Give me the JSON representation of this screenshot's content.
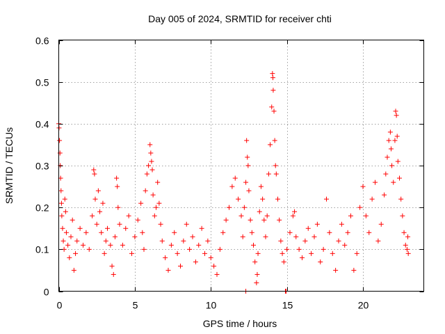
{
  "chart_data": {
    "type": "scatter",
    "title": "Day 005 of 2024, SRMTID for receiver chti",
    "xlabel": "GPS time / hours",
    "ylabel": "SRMTID / TECUs",
    "xlim": [
      0,
      24
    ],
    "ylim": [
      0,
      0.6
    ],
    "xticks": [
      0,
      5,
      10,
      15,
      20
    ],
    "xtick_labels": [
      "0",
      "5",
      "10",
      "15",
      "20"
    ],
    "yticks": [
      0,
      0.1,
      0.2,
      0.3,
      0.4,
      0.5,
      0.6
    ],
    "ytick_labels": [
      "0",
      "0.1",
      "0.2",
      "0.3",
      "0.4",
      "0.5",
      "0.6"
    ],
    "grid": true,
    "marker": "plus",
    "color": "#ff0000",
    "series": [
      {
        "name": "SRMTID",
        "points": [
          [
            0.0,
            0.4
          ],
          [
            0.02,
            0.39
          ],
          [
            0.05,
            0.36
          ],
          [
            0.08,
            0.33
          ],
          [
            0.1,
            0.3
          ],
          [
            0.12,
            0.27
          ],
          [
            0.15,
            0.24
          ],
          [
            0.18,
            0.21
          ],
          [
            0.2,
            0.18
          ],
          [
            0.25,
            0.15
          ],
          [
            0.3,
            0.12
          ],
          [
            0.35,
            0.1
          ],
          [
            0.4,
            0.22
          ],
          [
            0.45,
            0.19
          ],
          [
            0.5,
            0.14
          ],
          [
            0.6,
            0.11
          ],
          [
            0.7,
            0.08
          ],
          [
            0.8,
            0.13
          ],
          [
            0.9,
            0.17
          ],
          [
            1.0,
            0.05
          ],
          [
            1.1,
            0.09
          ],
          [
            1.2,
            0.12
          ],
          [
            1.4,
            0.15
          ],
          [
            1.6,
            0.11
          ],
          [
            1.8,
            0.14
          ],
          [
            2.0,
            0.1
          ],
          [
            2.2,
            0.18
          ],
          [
            2.3,
            0.29
          ],
          [
            2.35,
            0.28
          ],
          [
            2.4,
            0.22
          ],
          [
            2.5,
            0.16
          ],
          [
            2.6,
            0.24
          ],
          [
            2.7,
            0.19
          ],
          [
            2.8,
            0.14
          ],
          [
            2.9,
            0.21
          ],
          [
            3.0,
            0.09
          ],
          [
            3.1,
            0.12
          ],
          [
            3.2,
            0.15
          ],
          [
            3.4,
            0.11
          ],
          [
            3.5,
            0.06
          ],
          [
            3.6,
            0.04
          ],
          [
            3.7,
            0.13
          ],
          [
            3.8,
            0.27
          ],
          [
            3.85,
            0.25
          ],
          [
            3.9,
            0.2
          ],
          [
            4.0,
            0.16
          ],
          [
            4.2,
            0.11
          ],
          [
            4.4,
            0.15
          ],
          [
            4.6,
            0.18
          ],
          [
            4.8,
            0.09
          ],
          [
            5.0,
            0.13
          ],
          [
            5.2,
            0.17
          ],
          [
            5.4,
            0.21
          ],
          [
            5.5,
            0.14
          ],
          [
            5.6,
            0.1
          ],
          [
            5.7,
            0.24
          ],
          [
            5.8,
            0.28
          ],
          [
            5.9,
            0.3
          ],
          [
            6.0,
            0.35
          ],
          [
            6.05,
            0.33
          ],
          [
            6.1,
            0.31
          ],
          [
            6.15,
            0.29
          ],
          [
            6.2,
            0.23
          ],
          [
            6.3,
            0.18
          ],
          [
            6.4,
            0.2
          ],
          [
            6.5,
            0.26
          ],
          [
            6.6,
            0.21
          ],
          [
            6.7,
            0.16
          ],
          [
            6.8,
            0.12
          ],
          [
            7.0,
            0.08
          ],
          [
            7.2,
            0.05
          ],
          [
            7.4,
            0.11
          ],
          [
            7.6,
            0.14
          ],
          [
            7.8,
            0.09
          ],
          [
            8.0,
            0.06
          ],
          [
            8.2,
            0.12
          ],
          [
            8.4,
            0.16
          ],
          [
            8.6,
            0.1
          ],
          [
            8.8,
            0.13
          ],
          [
            9.0,
            0.07
          ],
          [
            9.2,
            0.11
          ],
          [
            9.4,
            0.15
          ],
          [
            9.6,
            0.09
          ],
          [
            9.8,
            0.12
          ],
          [
            10.0,
            0.08
          ],
          [
            10.2,
            0.06
          ],
          [
            10.4,
            0.04
          ],
          [
            10.6,
            0.1
          ],
          [
            10.8,
            0.14
          ],
          [
            11.0,
            0.17
          ],
          [
            11.2,
            0.2
          ],
          [
            11.4,
            0.25
          ],
          [
            11.6,
            0.27
          ],
          [
            11.8,
            0.22
          ],
          [
            12.0,
            0.18
          ],
          [
            12.1,
            0.13
          ],
          [
            12.2,
            0.2
          ],
          [
            12.3,
            0.26
          ],
          [
            12.35,
            0.36
          ],
          [
            12.4,
            0.32
          ],
          [
            12.45,
            0.3
          ],
          [
            12.5,
            0.24
          ],
          [
            12.6,
            0.17
          ],
          [
            12.7,
            0.14
          ],
          [
            12.8,
            0.11
          ],
          [
            12.9,
            0.07
          ],
          [
            13.0,
            0.02
          ],
          [
            13.05,
            0.04
          ],
          [
            13.1,
            0.09
          ],
          [
            13.2,
            0.19
          ],
          [
            13.3,
            0.25
          ],
          [
            13.4,
            0.22
          ],
          [
            13.5,
            0.17
          ],
          [
            13.6,
            0.13
          ],
          [
            13.7,
            0.18
          ],
          [
            13.8,
            0.28
          ],
          [
            13.9,
            0.35
          ],
          [
            14.0,
            0.44
          ],
          [
            14.05,
            0.52
          ],
          [
            14.08,
            0.51
          ],
          [
            14.1,
            0.48
          ],
          [
            14.15,
            0.43
          ],
          [
            14.2,
            0.36
          ],
          [
            14.25,
            0.3
          ],
          [
            14.3,
            0.28
          ],
          [
            14.4,
            0.22
          ],
          [
            14.5,
            0.17
          ],
          [
            14.6,
            0.12
          ],
          [
            14.7,
            0.09
          ],
          [
            14.8,
            0.07
          ],
          [
            15.0,
            0.1
          ],
          [
            15.2,
            0.14
          ],
          [
            15.4,
            0.18
          ],
          [
            15.5,
            0.19
          ],
          [
            15.6,
            0.13
          ],
          [
            15.8,
            0.1
          ],
          [
            16.0,
            0.08
          ],
          [
            16.2,
            0.12
          ],
          [
            16.4,
            0.15
          ],
          [
            16.6,
            0.09
          ],
          [
            16.8,
            0.13
          ],
          [
            17.0,
            0.16
          ],
          [
            17.2,
            0.07
          ],
          [
            17.4,
            0.1
          ],
          [
            17.6,
            0.22
          ],
          [
            17.8,
            0.14
          ],
          [
            18.0,
            0.09
          ],
          [
            18.2,
            0.05
          ],
          [
            18.4,
            0.12
          ],
          [
            18.6,
            0.16
          ],
          [
            18.8,
            0.11
          ],
          [
            19.0,
            0.14
          ],
          [
            19.2,
            0.18
          ],
          [
            19.4,
            0.05
          ],
          [
            19.6,
            0.09
          ],
          [
            19.8,
            0.2
          ],
          [
            20.0,
            0.25
          ],
          [
            20.2,
            0.18
          ],
          [
            20.4,
            0.14
          ],
          [
            20.6,
            0.22
          ],
          [
            20.8,
            0.26
          ],
          [
            21.0,
            0.12
          ],
          [
            21.2,
            0.16
          ],
          [
            21.4,
            0.23
          ],
          [
            21.5,
            0.28
          ],
          [
            21.6,
            0.32
          ],
          [
            21.7,
            0.36
          ],
          [
            21.8,
            0.38
          ],
          [
            21.85,
            0.34
          ],
          [
            21.9,
            0.3
          ],
          [
            22.0,
            0.26
          ],
          [
            22.1,
            0.36
          ],
          [
            22.15,
            0.43
          ],
          [
            22.2,
            0.42
          ],
          [
            22.25,
            0.37
          ],
          [
            22.3,
            0.31
          ],
          [
            22.4,
            0.27
          ],
          [
            22.5,
            0.22
          ],
          [
            22.6,
            0.18
          ],
          [
            22.7,
            0.14
          ],
          [
            22.8,
            0.11
          ],
          [
            22.9,
            0.1
          ],
          [
            22.95,
            0.13
          ],
          [
            22.98,
            0.09
          ],
          [
            12.3,
            0.0
          ],
          [
            14.9,
            0.0
          ],
          [
            14.95,
            0.0
          ]
        ]
      }
    ]
  }
}
